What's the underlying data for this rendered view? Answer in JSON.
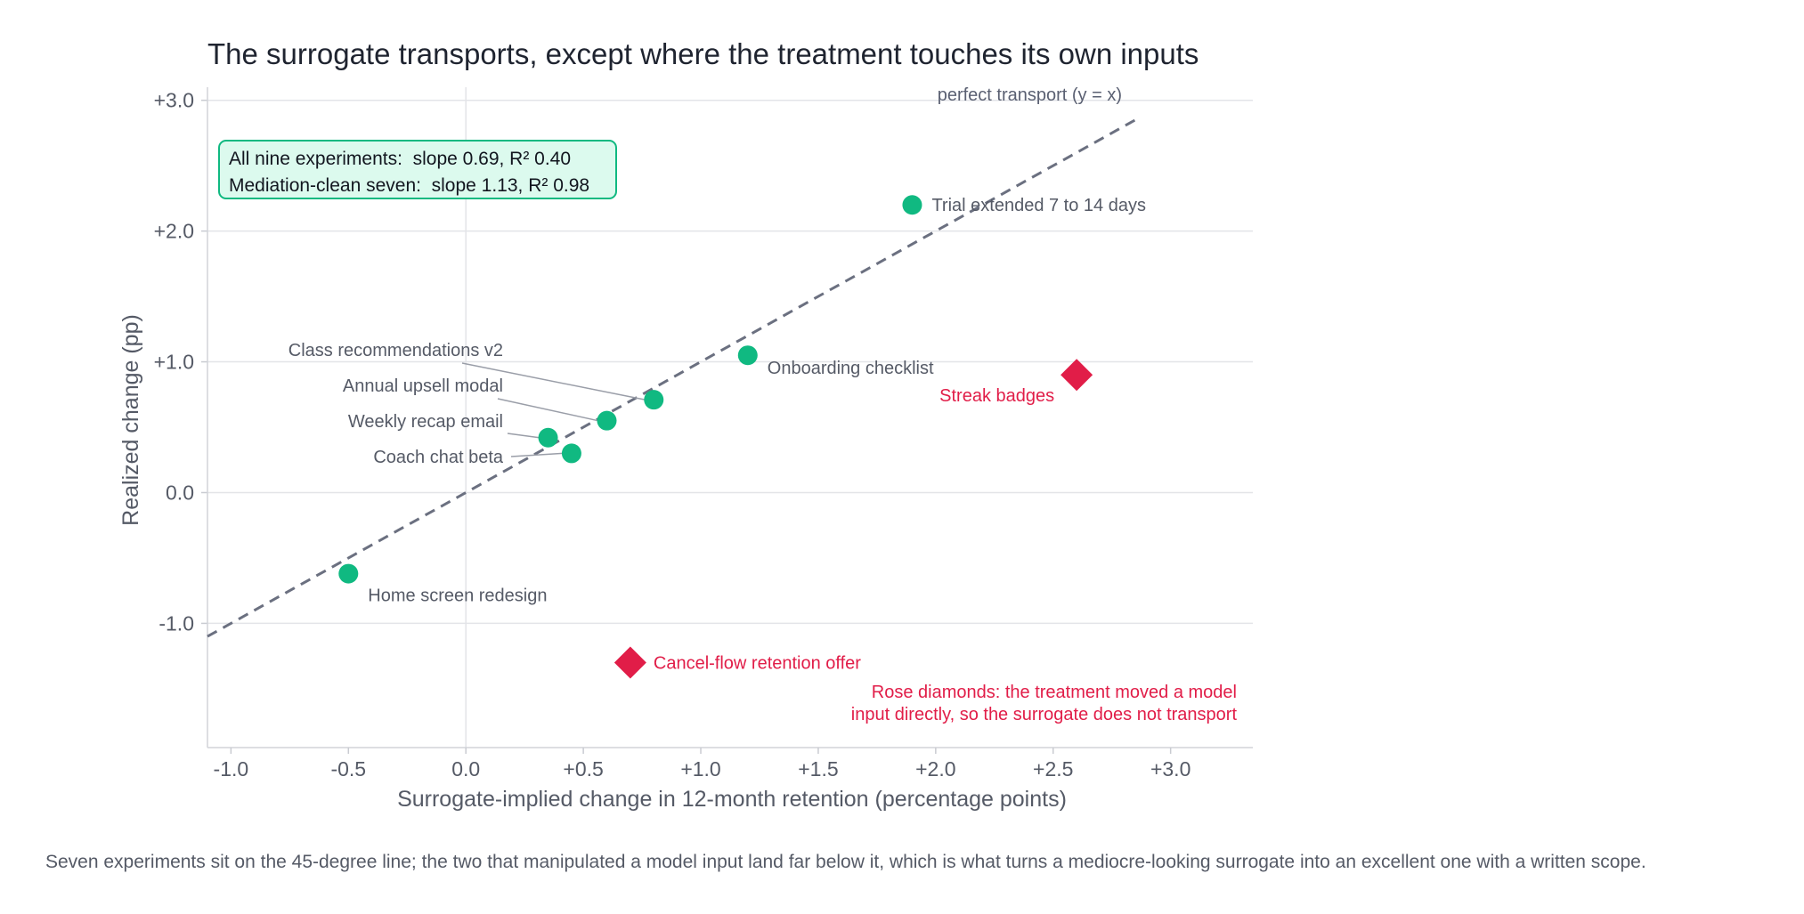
{
  "chart_data": {
    "type": "scatter",
    "title": "The surrogate transports, except where the treatment touches its own inputs",
    "xlabel": "Surrogate-implied change in 12-month retention (percentage points)",
    "ylabel": "Realized change (pp)",
    "xlim": [
      -1.1,
      3.35
    ],
    "ylim": [
      -1.95,
      3.1
    ],
    "x_ticks": [
      -1.0,
      -0.5,
      0.0,
      0.5,
      1.0,
      1.5,
      2.0,
      2.5,
      3.0
    ],
    "x_tick_labels": [
      "-1.0",
      "-0.5",
      "0.0",
      "+0.5",
      "+1.0",
      "+1.5",
      "+2.0",
      "+2.5",
      "+3.0"
    ],
    "y_ticks": [
      -1.0,
      0.0,
      1.0,
      2.0,
      3.0
    ],
    "y_tick_labels": [
      "-1.0",
      "0.0",
      "+1.0",
      "+2.0",
      "+3.0"
    ],
    "grid": "horizontal",
    "reference_line": {
      "label": "perfect transport (y = x)",
      "x_range": [
        -1.1,
        2.85
      ]
    },
    "colors": {
      "clean": "#10b981",
      "rose": "#e11d48",
      "reference": "#6b7080",
      "grid": "#e3e4e8"
    },
    "series": [
      {
        "marker": "circle",
        "color": "#10b981",
        "points": [
          {
            "label": "Trial extended 7 to 14 days",
            "x": 1.9,
            "y": 2.2
          },
          {
            "label": "Onboarding checklist",
            "x": 1.2,
            "y": 1.05
          },
          {
            "label": "Class recommendations v2",
            "x": 0.8,
            "y": 0.71
          },
          {
            "label": "Annual upsell modal",
            "x": 0.6,
            "y": 0.55
          },
          {
            "label": "Weekly recap email",
            "x": 0.35,
            "y": 0.42
          },
          {
            "label": "Coach chat beta",
            "x": 0.45,
            "y": 0.3
          },
          {
            "label": "Home screen redesign",
            "x": -0.5,
            "y": -0.62
          }
        ]
      },
      {
        "marker": "diamond",
        "color": "#e11d48",
        "points": [
          {
            "label": "Streak badges",
            "x": 2.6,
            "y": 0.9
          },
          {
            "label": "Cancel-flow retention offer",
            "x": 0.7,
            "y": -1.3
          }
        ]
      }
    ],
    "fit_summary": [
      "All nine experiments:  slope 0.69, R² 0.40",
      "Mediation-clean seven:  slope 1.13, R² 0.98"
    ],
    "note_lines": [
      "Rose diamonds: the treatment moved a model",
      "input directly, so the surrogate does not transport"
    ]
  },
  "caption": "Seven experiments sit on the 45-degree line; the two that manipulated a model input land far below it, which is what turns a mediocre-looking surrogate into an excellent one with a written scope."
}
